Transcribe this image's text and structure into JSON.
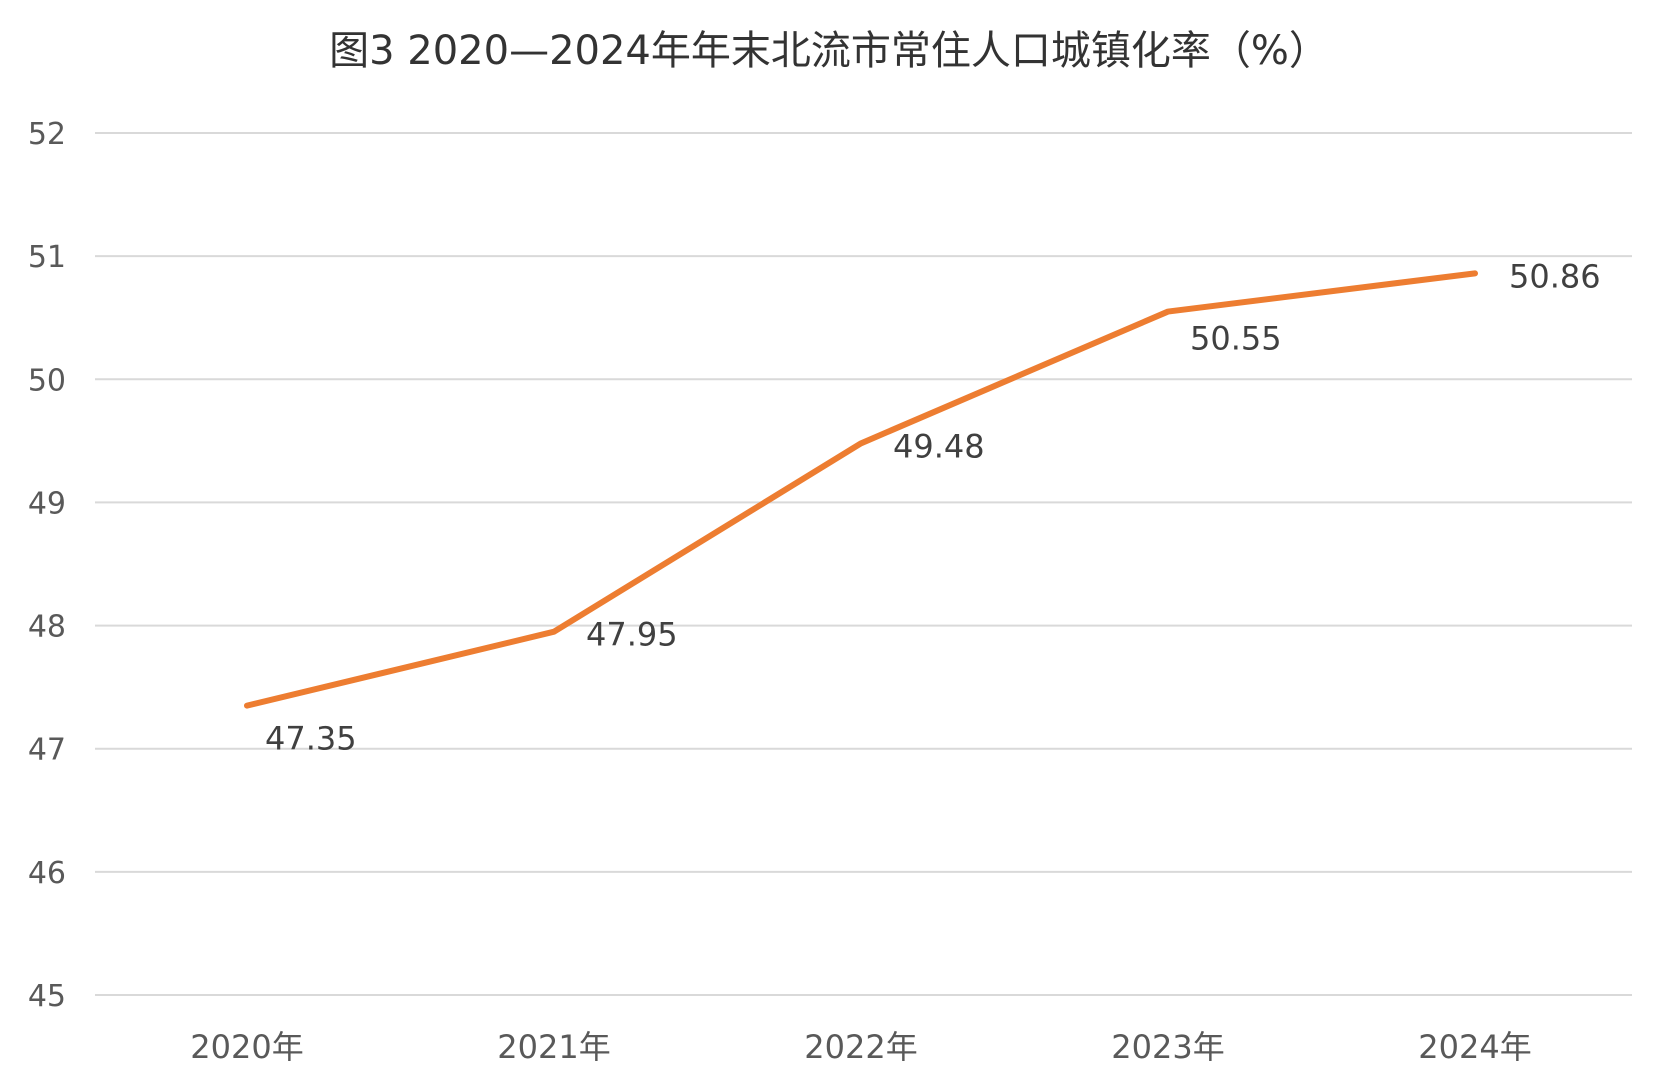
{
  "chart_data": {
    "type": "line",
    "title": "图3  2020—2024年年末北流市常住人口城镇化率（%）",
    "categories": [
      "2020年",
      "2021年",
      "2022年",
      "2023年",
      "2024年"
    ],
    "series": [
      {
        "values": [
          47.35,
          47.95,
          49.48,
          50.55,
          50.86
        ],
        "color": "#ed7d31"
      }
    ],
    "data_labels": [
      "47.35",
      "47.95",
      "49.48",
      "50.55",
      "50.86"
    ],
    "ylim": [
      45,
      52
    ],
    "yticks": [
      "45",
      "46",
      "47",
      "48",
      "49",
      "50",
      "51",
      "52"
    ],
    "xlabel": "",
    "ylabel": "",
    "grid": true,
    "legend": "none"
  }
}
